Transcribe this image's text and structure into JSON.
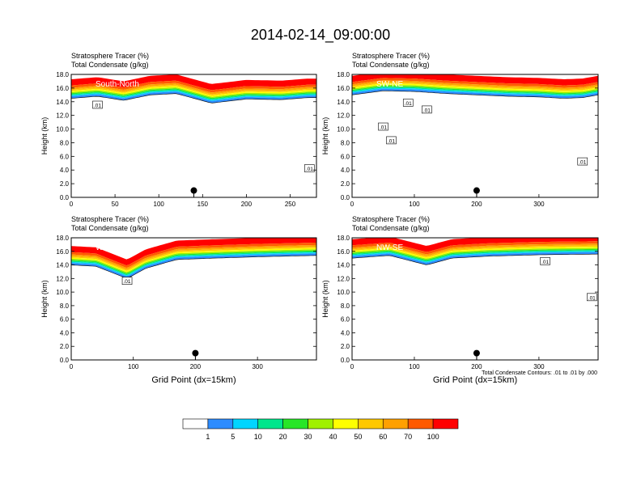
{
  "figure": {
    "title": "2014-02-14_09:00:00",
    "contour_info": "Total Condensate Contours: .01 to .01 by .000"
  },
  "colorbar": {
    "labels": [
      "1",
      "5",
      "10",
      "20",
      "30",
      "40",
      "50",
      "60",
      "70",
      "100"
    ],
    "colors": [
      "#ffffff",
      "#2d8cff",
      "#00d5ff",
      "#00e68c",
      "#28e628",
      "#a0f000",
      "#ffff00",
      "#ffc800",
      "#ffa000",
      "#ff5a00",
      "#ff0000"
    ]
  },
  "chart_data": [
    {
      "type": "contour",
      "panel_label": "South-North",
      "header": [
        "Stratosphere Tracer   (%)",
        "Total Condensate   (g/kg)"
      ],
      "ylabel": "Height (km)",
      "xlabel": "",
      "xticks": [
        0,
        50,
        100,
        150,
        200,
        250
      ],
      "yticks": [
        "0.0",
        "2.0",
        "4.0",
        "6.0",
        "8.0",
        "10.0",
        "12.0",
        "14.0",
        "16.0",
        "18.0"
      ],
      "xlim": [
        0,
        280
      ],
      "ylim": [
        0,
        18
      ],
      "tropopause": [
        [
          0,
          14.5
        ],
        [
          30,
          14.8
        ],
        [
          60,
          14.2
        ],
        [
          90,
          15.0
        ],
        [
          120,
          15.2
        ],
        [
          140,
          14.5
        ],
        [
          160,
          13.8
        ],
        [
          200,
          14.4
        ],
        [
          240,
          14.3
        ],
        [
          270,
          14.6
        ],
        [
          280,
          14.6
        ]
      ],
      "contour_labels": [
        {
          "text": ".01",
          "x": 30,
          "y": 13.5
        },
        {
          "text": ".01",
          "x": 272,
          "y": 4.2
        }
      ],
      "marker": {
        "x": 140,
        "y": 1.0
      }
    },
    {
      "type": "contour",
      "panel_label": "SW-NE",
      "header": [
        "Stratosphere Tracer   (%)",
        "Total Condensate   (g/kg)"
      ],
      "ylabel": "Height (km)",
      "xlabel": "",
      "xticks": [
        0,
        100,
        200,
        300
      ],
      "yticks": [
        "0.0",
        "2.0",
        "4.0",
        "6.0",
        "8.0",
        "10.0",
        "12.0",
        "14.0",
        "16.0",
        "18.0"
      ],
      "xlim": [
        0,
        395
      ],
      "ylim": [
        0,
        18
      ],
      "tropopause": [
        [
          0,
          15.0
        ],
        [
          50,
          15.6
        ],
        [
          100,
          15.5
        ],
        [
          150,
          15.2
        ],
        [
          200,
          15.0
        ],
        [
          250,
          14.8
        ],
        [
          300,
          14.7
        ],
        [
          340,
          14.5
        ],
        [
          370,
          14.6
        ],
        [
          395,
          15.0
        ]
      ],
      "contour_labels": [
        {
          "text": ".01",
          "x": 90,
          "y": 13.8
        },
        {
          "text": ".01",
          "x": 120,
          "y": 12.8
        },
        {
          "text": ".01",
          "x": 50,
          "y": 10.3
        },
        {
          "text": ".01",
          "x": 63,
          "y": 8.3
        },
        {
          "text": ".01",
          "x": 370,
          "y": 5.2
        }
      ],
      "marker": {
        "x": 200,
        "y": 1.0
      }
    },
    {
      "type": "contour",
      "panel_label": "West-East",
      "header": [
        "Stratosphere Tracer   (%)",
        "Total Condensate   (g/kg)"
      ],
      "ylabel": "Height (km)",
      "xlabel": "Grid Point (dx=15km)",
      "xticks": [
        0,
        100,
        200,
        300
      ],
      "yticks": [
        "0.0",
        "2.0",
        "4.0",
        "6.0",
        "8.0",
        "10.0",
        "12.0",
        "14.0",
        "16.0",
        "18.0"
      ],
      "xlim": [
        0,
        395
      ],
      "ylim": [
        0,
        18
      ],
      "tropopause": [
        [
          0,
          14.0
        ],
        [
          40,
          13.8
        ],
        [
          90,
          12.0
        ],
        [
          120,
          13.5
        ],
        [
          170,
          14.8
        ],
        [
          230,
          15.0
        ],
        [
          300,
          15.2
        ],
        [
          395,
          15.4
        ]
      ],
      "contour_labels": [
        {
          "text": ".01",
          "x": 90,
          "y": 11.6
        }
      ],
      "marker": {
        "x": 200,
        "y": 1.0
      }
    },
    {
      "type": "contour",
      "panel_label": "NW-SE",
      "header": [
        "Stratosphere Tracer   (%)",
        "Total Condensate   (g/kg)"
      ],
      "ylabel": "Height (km)",
      "xlabel": "Grid Point (dx=15km)",
      "xticks": [
        0,
        100,
        200,
        300
      ],
      "yticks": [
        "0.0",
        "2.0",
        "4.0",
        "6.0",
        "8.0",
        "10.0",
        "12.0",
        "14.0",
        "16.0",
        "18.0"
      ],
      "xlim": [
        0,
        395
      ],
      "ylim": [
        0,
        18
      ],
      "tropopause": [
        [
          0,
          15.0
        ],
        [
          60,
          15.4
        ],
        [
          120,
          14.0
        ],
        [
          160,
          15.0
        ],
        [
          220,
          15.3
        ],
        [
          300,
          15.5
        ],
        [
          395,
          15.6
        ]
      ],
      "contour_labels": [
        {
          "text": ".01",
          "x": 310,
          "y": 14.5
        },
        {
          "text": ".01",
          "x": 385,
          "y": 9.2
        }
      ],
      "marker": {
        "x": 200,
        "y": 1.0
      }
    }
  ]
}
